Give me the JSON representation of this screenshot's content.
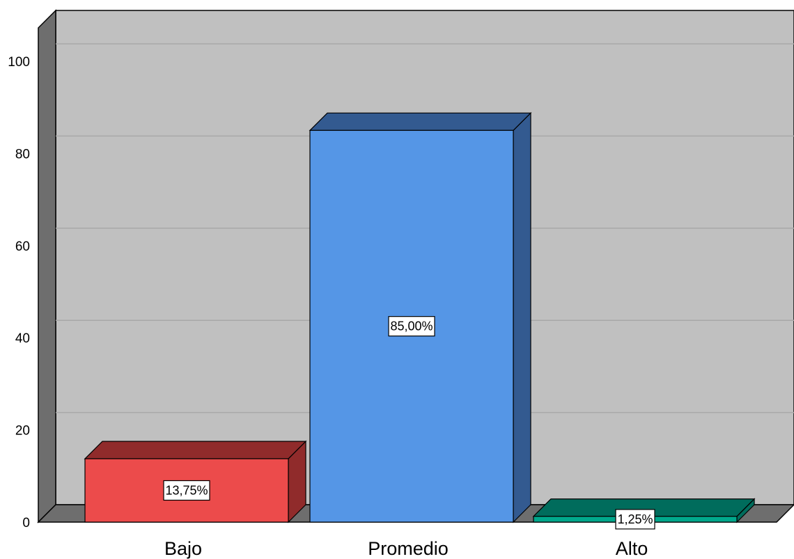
{
  "chart_data": {
    "type": "bar",
    "style": "3d",
    "categories": [
      "Bajo",
      "Promedio",
      "Alto"
    ],
    "values": [
      13.75,
      85.0,
      1.25
    ],
    "data_labels": [
      "13,75%",
      "85,00%",
      "1,25%"
    ],
    "colors": [
      {
        "front": "#ec4b4b",
        "top": "#902b2b",
        "side": "#902b2b"
      },
      {
        "front": "#5596e6",
        "top": "#335a90",
        "side": "#335a90"
      },
      {
        "front": "#00a88c",
        "top": "#006c5c",
        "side": "#006c5c"
      }
    ],
    "y_ticks": [
      0,
      20,
      40,
      60,
      80,
      100
    ],
    "ylim": [
      0,
      105
    ],
    "grid": true,
    "legend": "none",
    "title": "",
    "xlabel": "",
    "ylabel": ""
  }
}
